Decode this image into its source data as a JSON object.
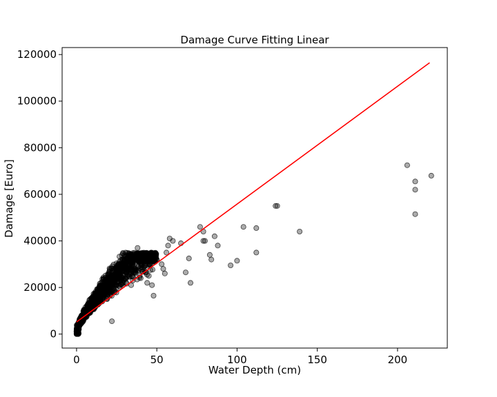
{
  "chart_data": {
    "type": "scatter",
    "title": "Damage Curve Fitting Linear",
    "xlabel": "Water Depth (cm)",
    "ylabel": "Damage [Euro]",
    "xlim": [
      -9,
      231
    ],
    "ylim": [
      -6000,
      123000
    ],
    "xticks": [
      0,
      50,
      100,
      150,
      200
    ],
    "yticks": [
      0,
      20000,
      40000,
      60000,
      80000,
      100000,
      120000
    ],
    "grid": false,
    "legend": "none",
    "colors": {
      "points": "#000000",
      "fit_line": "#ff0000"
    },
    "points": {
      "opacity": 0.33,
      "x": [
        206,
        211,
        211,
        221,
        211,
        125,
        124,
        139,
        104,
        112,
        112,
        100,
        96,
        77,
        79,
        80,
        86,
        88,
        83,
        84,
        79,
        70,
        68,
        65,
        71,
        60,
        57,
        58,
        55,
        56,
        54,
        53,
        50,
        48,
        46,
        47,
        48,
        45,
        42,
        44,
        41,
        40,
        38,
        36,
        35,
        34,
        33,
        30,
        29,
        28,
        27,
        25,
        24,
        22,
        21,
        20,
        19,
        18,
        17,
        16,
        15,
        14,
        13,
        12,
        11,
        10,
        9,
        8,
        7,
        6,
        5,
        4,
        3,
        2,
        1,
        0.5,
        0.2,
        0,
        0,
        0
      ],
      "y": [
        72500,
        65500,
        62000,
        68000,
        51500,
        55000,
        55000,
        44000,
        46000,
        45500,
        35000,
        31500,
        29500,
        46000,
        44000,
        40000,
        42000,
        38000,
        34000,
        32000,
        40000,
        32500,
        26500,
        39000,
        22000,
        40000,
        38000,
        41000,
        26000,
        35000,
        28000,
        30000,
        32000,
        16500,
        30000,
        21000,
        33000,
        25000,
        31000,
        22000,
        27000,
        24000,
        37000,
        29000,
        23000,
        21000,
        30000,
        27000,
        22000,
        24000,
        29000,
        21000,
        26000,
        5500,
        18000,
        23000,
        15000,
        20000,
        17000,
        14000,
        18000,
        16000,
        13000,
        15000,
        12000,
        14000,
        11000,
        10000,
        9000,
        8000,
        7000,
        6000,
        5000,
        4000,
        3000,
        2000,
        1500,
        1000,
        500,
        0
      ]
    },
    "cloud": {
      "x_max": 50,
      "y_max": 35000
    },
    "fit_line": {
      "x": [
        0,
        220
      ],
      "y": [
        5200,
        116500
      ]
    }
  }
}
